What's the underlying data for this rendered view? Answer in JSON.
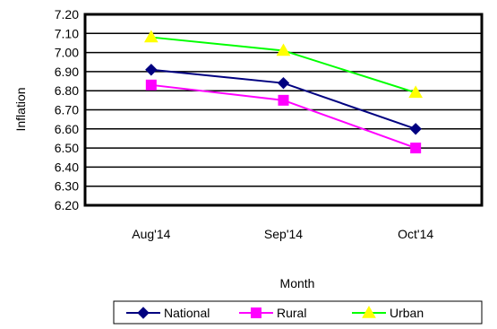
{
  "chart_data": {
    "type": "line",
    "categories": [
      "Aug'14",
      "Sep'14",
      "Oct'14"
    ],
    "series": [
      {
        "name": "National",
        "values": [
          6.91,
          6.84,
          6.6
        ],
        "color": "#000080",
        "marker": "diamond"
      },
      {
        "name": "Rural",
        "values": [
          6.83,
          6.75,
          6.5
        ],
        "color": "#FF00FF",
        "marker": "square"
      },
      {
        "name": "Urban",
        "values": [
          7.08,
          7.01,
          6.79
        ],
        "color": "#00FF00",
        "marker": "triangle",
        "marker_color": "#FFFF00"
      }
    ],
    "xlabel": "Month",
    "ylabel": "Inflation",
    "ylim": [
      6.2,
      7.2
    ],
    "yticks": [
      "6.20",
      "6.30",
      "6.40",
      "6.50",
      "6.60",
      "6.70",
      "6.80",
      "6.90",
      "7.00",
      "7.10",
      "7.20"
    ],
    "grid": true,
    "legend_position": "bottom"
  }
}
